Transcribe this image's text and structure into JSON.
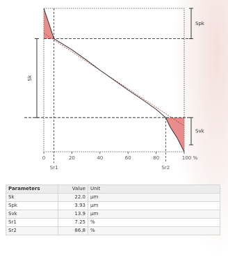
{
  "chart_data": {
    "type": "line",
    "x": [
      0,
      7.25,
      20,
      30,
      40,
      50,
      60,
      70,
      80,
      86.8,
      90,
      95,
      100
    ],
    "series": [
      {
        "values": [
          26.0,
          20.5,
          18.5,
          16.7,
          14.8,
          13.0,
          11.2,
          9.5,
          7.7,
          6.2,
          4.5,
          2.5,
          0.0
        ],
        "color": "#333333"
      }
    ],
    "x_ticks": [
      "0",
      "20",
      "40",
      "60",
      "80",
      "100 %"
    ],
    "xlim": [
      0,
      100
    ],
    "ylim": [
      0,
      26
    ],
    "annotations": {
      "left_bracket": "Sk",
      "right_top": "Spk",
      "right_bottom": "Svk",
      "x_marker_1": "Sr1",
      "x_marker_2": "Sr2"
    },
    "fill_color": "#e06666"
  },
  "table": {
    "headers": [
      "Parameters",
      "Value",
      "Unit"
    ],
    "rows": [
      [
        "Sk",
        "22.0",
        "µm"
      ],
      [
        "Spk",
        "3.93",
        "µm"
      ],
      [
        "Svk",
        "13.9",
        "µm"
      ],
      [
        "Sr1",
        "7.25",
        "%"
      ],
      [
        "Sr2",
        "86.8",
        "%"
      ]
    ]
  }
}
